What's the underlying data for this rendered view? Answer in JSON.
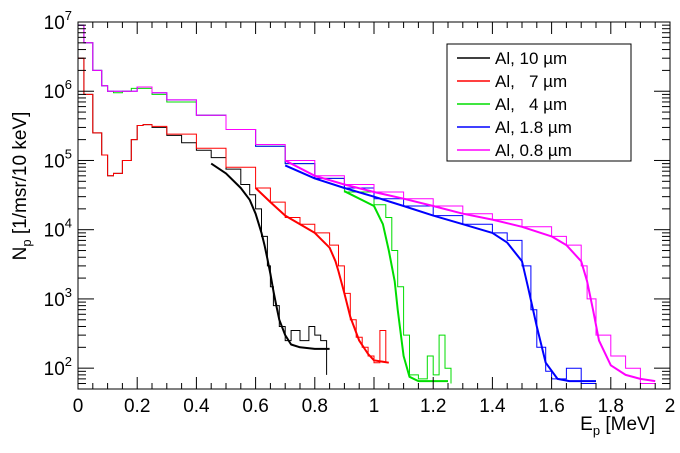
{
  "chart_data": {
    "type": "line",
    "xlabel": "E",
    "xlabel_sub": "p",
    "xlabel_unit": " [MeV]",
    "ylabel": "N",
    "ylabel_sub": "p",
    "ylabel_unit": " [1/msr/10 keV]",
    "xlim": [
      0,
      2
    ],
    "ylim": [
      50,
      10000000
    ],
    "yscale": "log",
    "xticks": [
      0,
      0.2,
      0.4,
      0.6,
      0.8,
      1,
      1.2,
      1.4,
      1.6,
      1.8,
      2
    ],
    "xtick_labels": [
      "0",
      "0.2",
      "0.4",
      "0.6",
      "0.8",
      "1",
      "1.2",
      "1.4",
      "1.6",
      "1.8",
      "2"
    ],
    "yticks": [
      100,
      1000,
      10000,
      100000,
      1000000,
      10000000
    ],
    "ytick_labels": [
      {
        "base": "10",
        "exp": "2"
      },
      {
        "base": "10",
        "exp": "3"
      },
      {
        "base": "10",
        "exp": "4"
      },
      {
        "base": "10",
        "exp": "5"
      },
      {
        "base": "10",
        "exp": "6"
      },
      {
        "base": "10",
        "exp": "7"
      }
    ],
    "legend_position": "top-right",
    "series": [
      {
        "name": "Al, 10 µm",
        "color": "#000000",
        "x": [
          0.0,
          0.02,
          0.05,
          0.08,
          0.1,
          0.12,
          0.15,
          0.18,
          0.2,
          0.22,
          0.25,
          0.3,
          0.35,
          0.4,
          0.45,
          0.5,
          0.55,
          0.58,
          0.6,
          0.62,
          0.64,
          0.65,
          0.66,
          0.68,
          0.7,
          0.72,
          0.75,
          0.78,
          0.8,
          0.82,
          0.84
        ],
        "y": [
          3000000,
          900000,
          250000,
          120000,
          60000,
          65000,
          100000,
          200000,
          320000,
          330000,
          300000,
          230000,
          180000,
          140000,
          110000,
          75000,
          45000,
          32000,
          20000,
          8000,
          3000,
          1500,
          800,
          400,
          250,
          350,
          250,
          400,
          300,
          250,
          80
        ],
        "fit": {
          "x": [
            0.45,
            0.5,
            0.55,
            0.58,
            0.6,
            0.62,
            0.63,
            0.64,
            0.65,
            0.66,
            0.67,
            0.68,
            0.7,
            0.72,
            0.75,
            0.8,
            0.85
          ],
          "y": [
            90000,
            65000,
            40000,
            27000,
            17000,
            9000,
            6000,
            3800,
            2300,
            1300,
            800,
            500,
            300,
            220,
            200,
            190,
            190
          ]
        }
      },
      {
        "name": "Al,   7 µm",
        "color": "#ff0000",
        "x": [
          0.0,
          0.02,
          0.05,
          0.08,
          0.1,
          0.12,
          0.15,
          0.18,
          0.2,
          0.22,
          0.25,
          0.3,
          0.4,
          0.5,
          0.6,
          0.65,
          0.7,
          0.75,
          0.8,
          0.85,
          0.88,
          0.9,
          0.92,
          0.94,
          0.96,
          0.98,
          1.0,
          1.02,
          1.04
        ],
        "y": [
          3000000,
          900000,
          250000,
          120000,
          60000,
          65000,
          100000,
          200000,
          320000,
          330000,
          310000,
          240000,
          150000,
          80000,
          40000,
          25000,
          15000,
          12000,
          9000,
          6000,
          3000,
          1200,
          500,
          280,
          200,
          150,
          120,
          350,
          120
        ],
        "fit": {
          "x": [
            0.6,
            0.65,
            0.7,
            0.75,
            0.8,
            0.85,
            0.87,
            0.88,
            0.9,
            0.92,
            0.95,
            0.98,
            1.0,
            1.05
          ],
          "y": [
            40000,
            25000,
            16000,
            12000,
            9000,
            5500,
            3500,
            2500,
            1200,
            550,
            250,
            160,
            130,
            120
          ]
        }
      },
      {
        "name": "Al,   4 µm",
        "color": "#00dd00",
        "x": [
          0.0,
          0.02,
          0.05,
          0.08,
          0.1,
          0.12,
          0.15,
          0.18,
          0.2,
          0.25,
          0.3,
          0.4,
          0.5,
          0.6,
          0.7,
          0.8,
          0.9,
          1.0,
          1.04,
          1.06,
          1.08,
          1.1,
          1.12,
          1.15,
          1.18,
          1.2,
          1.22,
          1.24,
          1.26
        ],
        "y": [
          9000000,
          5000000,
          2000000,
          1200000,
          1000000,
          950000,
          1000000,
          1100000,
          1100000,
          900000,
          700000,
          450000,
          280000,
          160000,
          90000,
          55000,
          35000,
          23000,
          15000,
          5000,
          1500,
          300,
          80,
          70,
          150,
          80,
          300,
          100,
          60
        ],
        "fit": {
          "x": [
            0.9,
            1.0,
            1.03,
            1.05,
            1.07,
            1.08,
            1.1,
            1.12,
            1.15,
            1.2,
            1.25
          ],
          "y": [
            36000,
            22000,
            12000,
            5000,
            1800,
            700,
            150,
            75,
            65,
            65,
            65
          ]
        }
      },
      {
        "name": "Al, 1.8 µm",
        "color": "#0000ff",
        "x": [
          0.0,
          0.02,
          0.05,
          0.08,
          0.1,
          0.15,
          0.2,
          0.25,
          0.3,
          0.4,
          0.5,
          0.6,
          0.7,
          0.8,
          0.9,
          1.0,
          1.1,
          1.2,
          1.3,
          1.4,
          1.45,
          1.5,
          1.53,
          1.55,
          1.58,
          1.6,
          1.65,
          1.7,
          1.75
        ],
        "y": [
          9000000,
          5000000,
          2000000,
          1200000,
          1000000,
          1000000,
          1150000,
          950000,
          750000,
          450000,
          280000,
          160000,
          90000,
          55000,
          40000,
          28000,
          22000,
          16000,
          12000,
          9000,
          7000,
          3000,
          700,
          200,
          90,
          70,
          100,
          60,
          60
        ],
        "fit": {
          "x": [
            0.7,
            0.8,
            0.9,
            1.0,
            1.1,
            1.2,
            1.3,
            1.4,
            1.45,
            1.5,
            1.52,
            1.55,
            1.58,
            1.62,
            1.66,
            1.7,
            1.75
          ],
          "y": [
            85000,
            55000,
            40000,
            30000,
            22000,
            16000,
            12000,
            9000,
            6500,
            3500,
            1500,
            400,
            120,
            70,
            65,
            65,
            65
          ]
        }
      },
      {
        "name": "Al, 0.8 µm",
        "color": "#ff00ff",
        "x": [
          0.0,
          0.02,
          0.05,
          0.08,
          0.1,
          0.15,
          0.2,
          0.25,
          0.3,
          0.4,
          0.5,
          0.6,
          0.7,
          0.8,
          0.9,
          1.0,
          1.1,
          1.2,
          1.3,
          1.4,
          1.5,
          1.6,
          1.65,
          1.7,
          1.72,
          1.75,
          1.8,
          1.85,
          1.9,
          1.95
        ],
        "y": [
          9000000,
          5000000,
          2000000,
          1200000,
          1000000,
          1000000,
          1150000,
          950000,
          750000,
          450000,
          280000,
          170000,
          100000,
          60000,
          45000,
          35000,
          28000,
          22000,
          17000,
          14000,
          11000,
          8000,
          6000,
          3000,
          1000,
          300,
          150,
          100,
          60,
          60
        ],
        "fit": {
          "x": [
            0.7,
            0.8,
            0.9,
            1.0,
            1.1,
            1.2,
            1.3,
            1.4,
            1.5,
            1.6,
            1.65,
            1.7,
            1.72,
            1.74,
            1.76,
            1.8,
            1.85,
            1.9,
            1.95
          ],
          "y": [
            100000,
            60000,
            45000,
            35000,
            28000,
            22000,
            17000,
            14000,
            11000,
            8000,
            6000,
            3500,
            1800,
            700,
            250,
            110,
            80,
            70,
            65
          ]
        }
      }
    ]
  }
}
